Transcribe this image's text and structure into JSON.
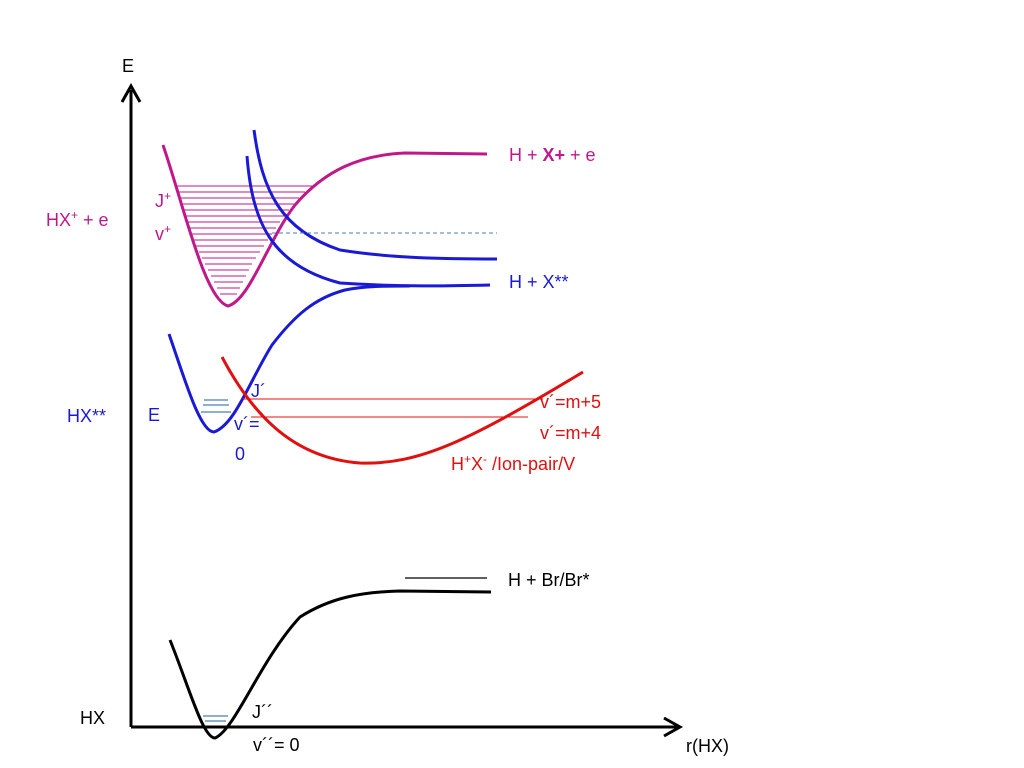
{
  "axes": {
    "y_label": "E",
    "x_label": "r(HX)"
  },
  "states": {
    "ground": {
      "left_label": "HX",
      "right_label": "H + Br/Br*",
      "j_label": "J´´",
      "v_label": "v´´= 0",
      "color": "#000000"
    },
    "rydberg": {
      "left_label": "HX**",
      "right_label": "H + X**",
      "e_label": "E",
      "v_label_1": "v´=",
      "v_label_2": "0",
      "color": "#1a1ad6"
    },
    "ion_pair": {
      "j_label": "J´",
      "right_label_prefix": "H",
      "right_label_sup1": "+",
      "right_label_x": "X",
      "right_label_sup2": "-",
      "right_label_suffix": " /Ion-pair/V",
      "level_label_1": "v´=m+5",
      "level_label_2": "v´=m+4",
      "color": "#e01010"
    },
    "ion": {
      "left_label_base": "HX",
      "left_label_sup": "+",
      "left_label_suffix": " + e",
      "j_base": "J",
      "j_sup": "+",
      "v_base": "v",
      "v_sup": "+",
      "right_label_1": "H + ",
      "right_label_bold": "X+",
      "right_label_2": " + e",
      "color": "#c0188a"
    }
  }
}
